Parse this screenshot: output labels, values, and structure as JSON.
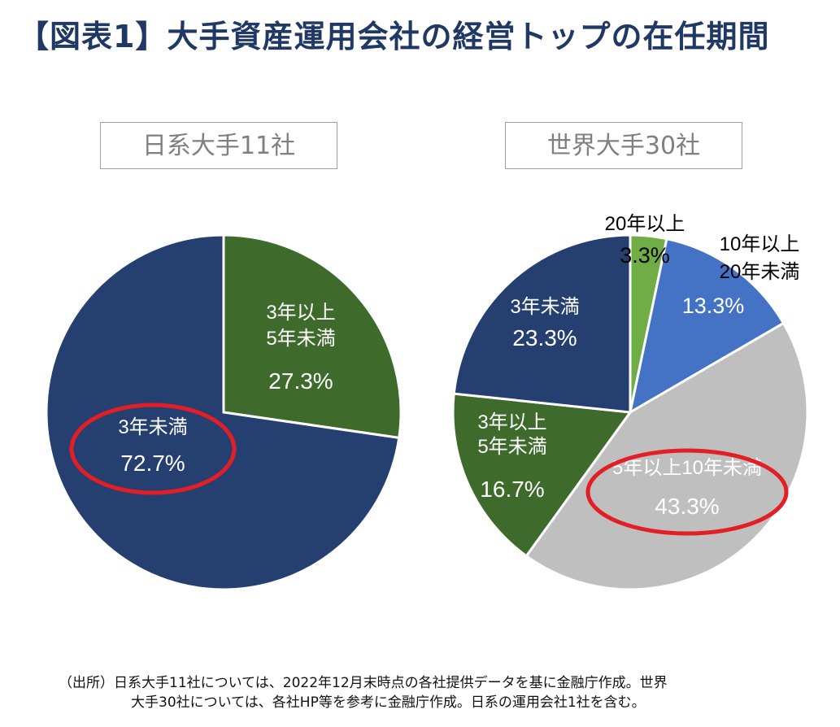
{
  "title": "【図表1】大手資産運用会社の経営トップの在任期間",
  "chart_data": [
    {
      "type": "pie",
      "title": "日系大手11社",
      "slices": [
        {
          "label": [
            "3年以上",
            "5年未満"
          ],
          "value": 27.3,
          "display": "27.3%",
          "color": "#3e6b2b",
          "text_color": "#ffffff"
        },
        {
          "label": [
            "3年未満"
          ],
          "value": 72.7,
          "display": "72.7%",
          "color": "#243f70",
          "text_color": "#ffffff",
          "highlight": true
        }
      ]
    },
    {
      "type": "pie",
      "title": "世界大手30社",
      "slices": [
        {
          "label": [
            "20年以上"
          ],
          "value": 3.3,
          "display": "3.3%",
          "color": "#70ad47",
          "text_color": "#000000"
        },
        {
          "label": [
            "10年以上",
            "20年未満"
          ],
          "value": 13.3,
          "display": "13.3%",
          "color": "#4472c4",
          "text_color": "#ffffff"
        },
        {
          "label": [
            "5年以上10年未満"
          ],
          "value": 43.3,
          "display": "43.3%",
          "color": "#bfbfbf",
          "text_color": "#ffffff",
          "highlight": true
        },
        {
          "label": [
            "3年以上",
            "5年未満"
          ],
          "value": 16.7,
          "display": "16.7%",
          "color": "#3e6b2b",
          "text_color": "#ffffff"
        },
        {
          "label": [
            "3年未満"
          ],
          "value": 23.3,
          "display": "23.3%",
          "color": "#243f70",
          "text_color": "#ffffff"
        }
      ]
    }
  ],
  "footnote": {
    "line1": "（出所）日系大手11社については、2022年12月末時点の各社提供データを基に金融庁作成。世界",
    "line2": "大手30社については、各社HP等を参考に金融庁作成。日系の運用会社1社を含む。"
  },
  "highlight_color": "#e31e24"
}
